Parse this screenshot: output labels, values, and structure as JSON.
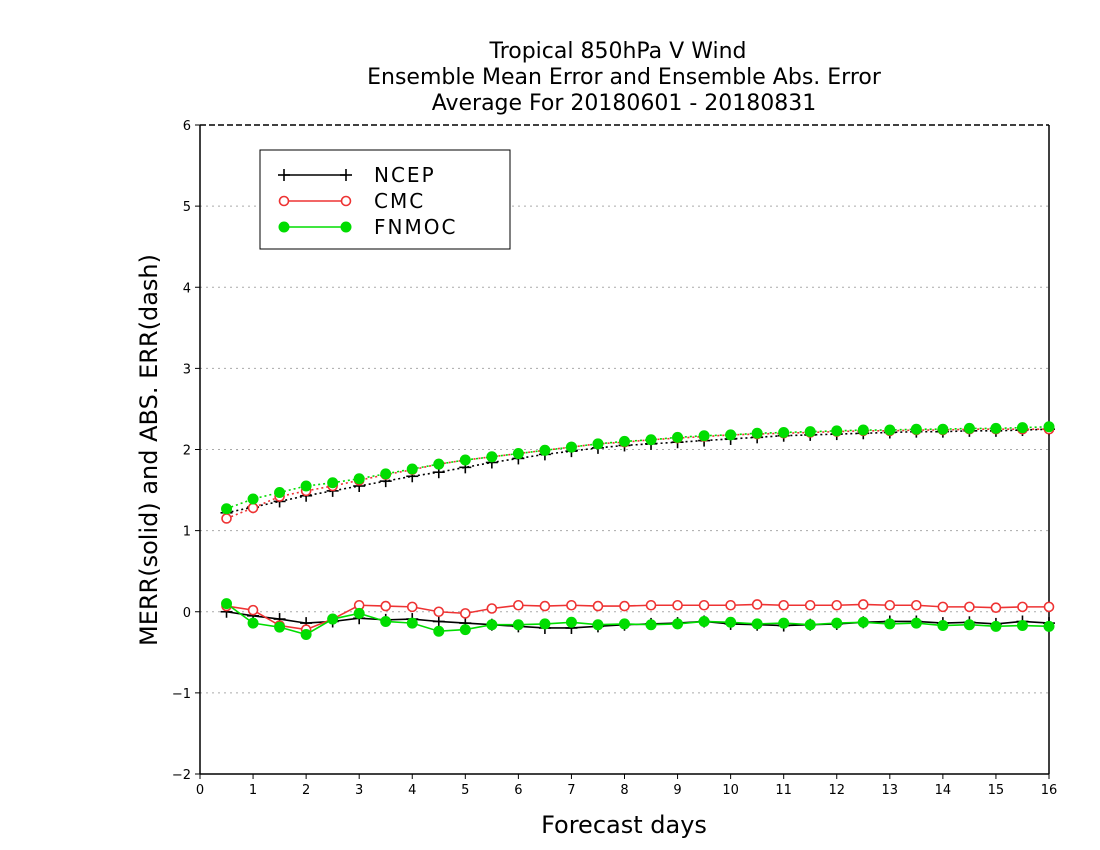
{
  "chart_data": {
    "type": "line",
    "title_lines": [
      "Tropical 850hPa V Wind",
      "Ensemble Mean Error and Ensemble Abs. Error",
      "Average For 20180601 - 20180831"
    ],
    "xlabel": "Forecast days",
    "ylabel": "MERR(solid) and ABS. ERR(dash)",
    "xlim": [
      0,
      16
    ],
    "ylim": [
      -2,
      6
    ],
    "xticks": [
      0,
      1,
      2,
      3,
      4,
      5,
      6,
      7,
      8,
      9,
      10,
      11,
      12,
      13,
      14,
      15,
      16
    ],
    "yticks": [
      -2,
      -1,
      0,
      1,
      2,
      3,
      4,
      5,
      6
    ],
    "grid": "horizontal dotted",
    "legend_position": "top-left",
    "x": [
      0.5,
      1,
      1.5,
      2,
      2.5,
      3,
      3.5,
      4,
      4.5,
      5,
      5.5,
      6,
      6.5,
      7,
      7.5,
      8,
      8.5,
      9,
      9.5,
      10,
      10.5,
      11,
      11.5,
      12,
      12.5,
      13,
      13.5,
      14,
      14.5,
      15,
      15.5,
      16
    ],
    "series": [
      {
        "name": "NCEP",
        "color": "#000000",
        "marker": "plus",
        "merr": [
          0.0,
          -0.05,
          -0.09,
          -0.14,
          -0.12,
          -0.08,
          -0.1,
          -0.09,
          -0.12,
          -0.14,
          -0.16,
          -0.18,
          -0.2,
          -0.2,
          -0.18,
          -0.16,
          -0.15,
          -0.14,
          -0.12,
          -0.15,
          -0.16,
          -0.17,
          -0.16,
          -0.15,
          -0.13,
          -0.12,
          -0.12,
          -0.14,
          -0.13,
          -0.15,
          -0.12,
          -0.14
        ],
        "abs_err": [
          1.22,
          1.29,
          1.36,
          1.43,
          1.49,
          1.55,
          1.61,
          1.67,
          1.72,
          1.78,
          1.84,
          1.89,
          1.94,
          1.98,
          2.02,
          2.05,
          2.07,
          2.09,
          2.11,
          2.13,
          2.15,
          2.17,
          2.18,
          2.19,
          2.2,
          2.21,
          2.22,
          2.22,
          2.23,
          2.23,
          2.24,
          2.25
        ]
      },
      {
        "name": "CMC",
        "color": "#ee3333",
        "marker": "open-circle",
        "merr": [
          0.07,
          0.02,
          -0.17,
          -0.22,
          -0.09,
          0.08,
          0.07,
          0.06,
          0.0,
          -0.02,
          0.04,
          0.08,
          0.07,
          0.08,
          0.07,
          0.07,
          0.08,
          0.08,
          0.08,
          0.08,
          0.09,
          0.08,
          0.08,
          0.08,
          0.09,
          0.08,
          0.08,
          0.06,
          0.06,
          0.05,
          0.06,
          0.06
        ],
        "abs_err": [
          1.15,
          1.28,
          1.42,
          1.49,
          1.55,
          1.62,
          1.69,
          1.75,
          1.82,
          1.87,
          1.91,
          1.95,
          1.99,
          2.03,
          2.07,
          2.09,
          2.12,
          2.14,
          2.16,
          2.18,
          2.19,
          2.2,
          2.21,
          2.22,
          2.23,
          2.23,
          2.24,
          2.24,
          2.25,
          2.25,
          2.25,
          2.25
        ]
      },
      {
        "name": "FNMOC",
        "color": "#00dd00",
        "marker": "filled-circle",
        "merr": [
          0.1,
          -0.14,
          -0.19,
          -0.28,
          -0.09,
          -0.02,
          -0.12,
          -0.14,
          -0.24,
          -0.22,
          -0.16,
          -0.16,
          -0.15,
          -0.13,
          -0.16,
          -0.15,
          -0.16,
          -0.15,
          -0.12,
          -0.13,
          -0.15,
          -0.14,
          -0.16,
          -0.14,
          -0.13,
          -0.15,
          -0.14,
          -0.17,
          -0.16,
          -0.18,
          -0.17,
          -0.18
        ],
        "abs_err": [
          1.27,
          1.39,
          1.47,
          1.55,
          1.59,
          1.64,
          1.7,
          1.76,
          1.82,
          1.87,
          1.91,
          1.95,
          1.99,
          2.03,
          2.07,
          2.1,
          2.12,
          2.15,
          2.17,
          2.18,
          2.2,
          2.21,
          2.22,
          2.23,
          2.24,
          2.24,
          2.25,
          2.25,
          2.26,
          2.26,
          2.27,
          2.28
        ]
      }
    ]
  }
}
